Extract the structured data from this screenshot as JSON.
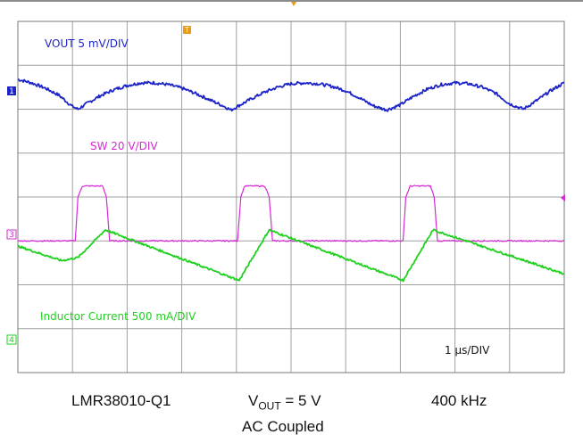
{
  "chart_data": {
    "type": "line",
    "grid": true,
    "xlim": [
      0,
      10
    ],
    "ylim": [
      -4,
      4
    ],
    "time_scale": "1 µs/DIV",
    "series": [
      {
        "name": "VOUT  5 mV/DIV",
        "color": "#1d24c8",
        "channel": "1",
        "x": [
          0,
          0.25,
          0.5,
          0.75,
          1.0,
          1.1,
          1.25,
          1.5,
          1.75,
          2.0,
          2.25,
          2.5,
          2.75,
          3.0,
          3.25,
          3.5,
          3.75,
          3.9,
          4.0,
          4.25,
          4.5,
          4.75,
          5.0,
          5.25,
          5.5,
          5.75,
          6.0,
          6.25,
          6.5,
          6.75,
          7.0,
          7.25,
          7.5,
          7.75,
          8.0,
          8.25,
          8.5,
          8.75,
          9.0,
          9.25,
          9.5,
          9.75,
          10
        ],
        "y": [
          2.68,
          2.6,
          2.48,
          2.32,
          2.06,
          2.0,
          2.12,
          2.3,
          2.44,
          2.54,
          2.6,
          2.6,
          2.56,
          2.48,
          2.36,
          2.22,
          2.08,
          1.98,
          2.05,
          2.22,
          2.38,
          2.5,
          2.58,
          2.6,
          2.58,
          2.52,
          2.42,
          2.26,
          2.08,
          1.98,
          2.1,
          2.3,
          2.46,
          2.56,
          2.6,
          2.58,
          2.5,
          2.36,
          2.12,
          2.0,
          2.2,
          2.42,
          2.6
        ]
      },
      {
        "name": "SW  20 V/DIV",
        "color": "#d42ad4",
        "channel": "3",
        "x": [
          0,
          1.05,
          1.1,
          1.18,
          1.55,
          1.62,
          1.68,
          4.02,
          4.08,
          4.15,
          4.52,
          4.6,
          4.66,
          7.05,
          7.1,
          7.18,
          7.55,
          7.62,
          7.68,
          10
        ],
        "y": [
          -1.0,
          -1.0,
          0.0,
          0.25,
          0.25,
          0.0,
          -1.0,
          -1.0,
          0.0,
          0.25,
          0.25,
          0.0,
          -1.0,
          -1.0,
          0.0,
          0.25,
          0.25,
          0.0,
          -1.0,
          -1.0
        ]
      },
      {
        "name": "Inductor Current  500 mA/DIV",
        "color": "#1fd01f",
        "channel": "4",
        "x": [
          0,
          0.8,
          1.1,
          1.6,
          4.05,
          4.6,
          7.05,
          7.6,
          10
        ],
        "y": [
          -1.12,
          -1.45,
          -1.38,
          -0.75,
          -1.9,
          -0.75,
          -1.9,
          -0.75,
          -1.75
        ]
      }
    ],
    "annotations": {
      "device": "LMR38010-Q1",
      "vout_label": "V",
      "vout_sub": "OUT",
      "vout_value": " = 5 V",
      "frequency": "400 kHz",
      "coupling": "AC Coupled"
    }
  },
  "colors": {
    "grid": "#a0a0a0",
    "frame": "#7a7a7a",
    "trigger_marker": "#e89a18"
  },
  "markers": {
    "ch1": "1",
    "ch3": "3",
    "ch4": "4",
    "trigger": "T"
  }
}
